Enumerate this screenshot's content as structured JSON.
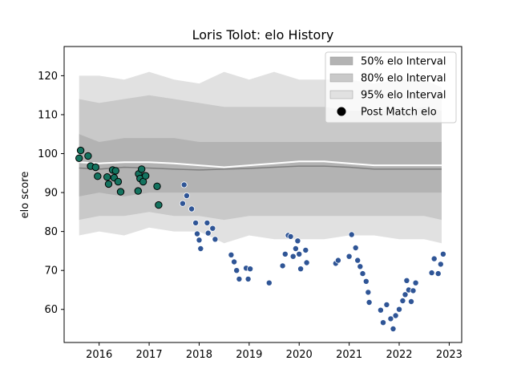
{
  "chart_data": {
    "type": "scatter",
    "title": "Loris Tolot: elo History",
    "xlabel": "",
    "ylabel": "elo score",
    "xlim": [
      2015.3,
      2023.25
    ],
    "ylim": [
      51.5,
      127.5
    ],
    "xticks": [
      2016,
      2017,
      2018,
      2019,
      2020,
      2021,
      2022,
      2023
    ],
    "yticks": [
      60,
      70,
      80,
      90,
      100,
      110,
      120
    ],
    "grid": false,
    "legend_position": "top-right",
    "colors": {
      "band_50": "#b3b3b3",
      "band_80": "#c9c9c9",
      "band_95": "#e1e1e1",
      "mean_line": "#ffffff",
      "median_line": "#7f7f7f",
      "early_points": "#14735f",
      "late_points": "#2f5596",
      "legend_marker": "#000000"
    },
    "legend": [
      {
        "label": "50% elo Interval",
        "kind": "band_50"
      },
      {
        "label": "80% elo Interval",
        "kind": "band_80"
      },
      {
        "label": "95% elo Interval",
        "kind": "band_95"
      },
      {
        "label": "Post Match elo",
        "kind": "marker"
      }
    ],
    "intervals": {
      "x": [
        2015.6,
        2016.0,
        2016.5,
        2017.0,
        2017.5,
        2018.0,
        2018.5,
        2019.0,
        2019.5,
        2020.0,
        2020.5,
        2021.0,
        2021.5,
        2022.0,
        2022.5,
        2022.85
      ],
      "band95": {
        "low": [
          79,
          80,
          79,
          81,
          80,
          80,
          77,
          79,
          78,
          78,
          78,
          79,
          79,
          78,
          78,
          77
        ],
        "high": [
          120,
          120,
          119,
          121,
          119,
          118,
          121,
          119,
          121,
          119,
          119,
          119,
          118,
          119,
          119,
          117
        ]
      },
      "band80": {
        "low": [
          83,
          84,
          84,
          85,
          84,
          84,
          83,
          84,
          84,
          84,
          84,
          84,
          84,
          84,
          84,
          83
        ],
        "high": [
          114,
          113,
          114,
          115,
          114,
          113,
          112,
          112,
          112,
          112,
          112,
          111,
          111,
          111,
          112,
          111
        ]
      },
      "band50": {
        "low": [
          89,
          90,
          89,
          90,
          90,
          90,
          90,
          90,
          90,
          90,
          90,
          90,
          90,
          90,
          90,
          90
        ],
        "high": [
          105,
          103,
          104,
          104,
          104,
          103,
          103,
          103,
          103,
          103,
          103,
          103,
          103,
          103,
          103,
          103
        ]
      },
      "mean": [
        97.8,
        97.5,
        97.8,
        97.8,
        97.5,
        97.0,
        96.5,
        97.0,
        97.5,
        98.0,
        98.0,
        97.5,
        97.0,
        97.0,
        97.0,
        97.0
      ],
      "median": [
        96.3,
        96.0,
        96.5,
        96.3,
        96.0,
        95.8,
        96.0,
        96.2,
        96.5,
        96.8,
        96.8,
        96.5,
        96.0,
        96.0,
        96.0,
        96.0
      ]
    },
    "series": [
      {
        "name": "early",
        "x": [
          2015.63,
          2015.6,
          2015.78,
          2015.83,
          2015.93,
          2015.97,
          2016.16,
          2016.19,
          2016.27,
          2016.3,
          2016.33,
          2016.38,
          2016.43,
          2016.79,
          2016.82,
          2016.85,
          2016.88,
          2016.93,
          2016.78,
          2017.16,
          2017.19
        ],
        "y": [
          100.8,
          98.8,
          99.4,
          96.8,
          96.5,
          94.2,
          94.0,
          92.2,
          95.8,
          93.8,
          95.6,
          92.8,
          90.2,
          94.8,
          93.6,
          96.0,
          92.8,
          94.3,
          90.4,
          91.6,
          86.8
        ]
      },
      {
        "name": "late",
        "x": [
          2017.7,
          2017.75,
          2017.67,
          2017.85,
          2017.93,
          2017.96,
          2018.0,
          2018.03,
          2018.16,
          2018.18,
          2018.27,
          2018.32,
          2018.64,
          2018.7,
          2018.75,
          2018.8,
          2018.94,
          2018.98,
          2019.02,
          2019.4,
          2019.67,
          2019.72,
          2019.78,
          2019.83,
          2019.88,
          2019.93,
          2019.97,
          2020.0,
          2020.03,
          2020.13,
          2020.15,
          2020.73,
          2020.78,
          2021.0,
          2021.05,
          2021.13,
          2021.17,
          2021.22,
          2021.27,
          2021.34,
          2021.38,
          2021.4,
          2021.63,
          2021.68,
          2021.75,
          2021.83,
          2021.88,
          2021.93,
          2022.0,
          2022.07,
          2022.12,
          2022.15,
          2022.19,
          2022.24,
          2022.28,
          2022.33,
          2022.65,
          2022.7,
          2022.78,
          2022.83,
          2022.88
        ],
        "y": [
          92.0,
          89.2,
          87.2,
          85.8,
          82.2,
          79.4,
          77.8,
          75.6,
          82.2,
          79.6,
          80.8,
          78.0,
          74.0,
          72.2,
          70.0,
          67.8,
          70.6,
          67.8,
          70.4,
          66.8,
          71.2,
          74.2,
          79.0,
          78.7,
          73.6,
          75.6,
          77.6,
          74.2,
          70.4,
          75.2,
          72.0,
          71.8,
          72.6,
          73.6,
          79.2,
          75.8,
          72.6,
          71.0,
          69.2,
          67.2,
          64.4,
          61.8,
          59.8,
          56.6,
          61.2,
          57.6,
          55.0,
          58.4,
          60.0,
          62.2,
          63.8,
          67.4,
          65.0,
          62.0,
          64.8,
          66.8,
          69.4,
          73.0,
          69.2,
          71.6,
          74.2
        ],
        "note": ""
      }
    ]
  }
}
